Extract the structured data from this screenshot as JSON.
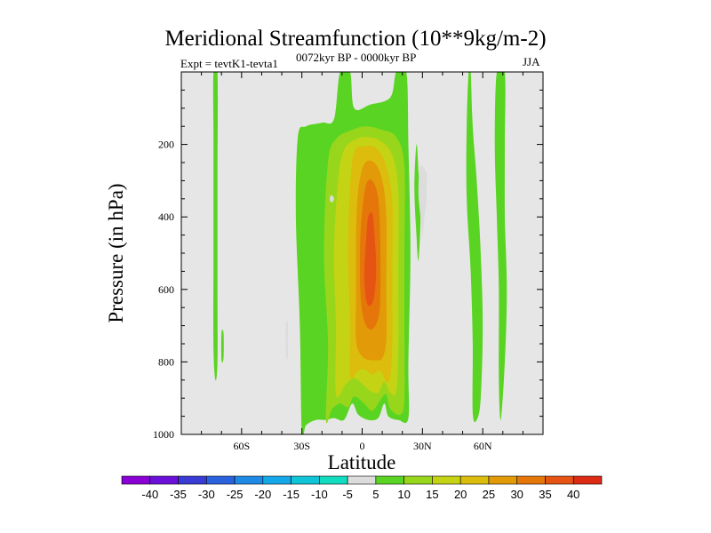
{
  "chart_data": {
    "type": "filled-contour",
    "title": "Meridional Streamfunction (10**9kg/m-2)",
    "left_label": "Expt = tevtK1-tevta1",
    "center_label": "0072kyr BP - 0000kyr BP",
    "right_label": "JJA",
    "xlabel": "Latitude",
    "ylabel": "Pressure (in hPa)",
    "xlim": [
      -90,
      90
    ],
    "ylim": [
      1000,
      0
    ],
    "xticks": [
      {
        "value": -60,
        "label": "60S"
      },
      {
        "value": -30,
        "label": "30S"
      },
      {
        "value": 0,
        "label": "0"
      },
      {
        "value": 30,
        "label": "30N"
      },
      {
        "value": 60,
        "label": "60N"
      }
    ],
    "yticks": [
      {
        "value": 200,
        "label": "200"
      },
      {
        "value": 400,
        "label": "400"
      },
      {
        "value": 600,
        "label": "600"
      },
      {
        "value": 800,
        "label": "800"
      },
      {
        "value": 1000,
        "label": "1000"
      }
    ],
    "colorbar": {
      "levels": [
        "-40",
        "-35",
        "-30",
        "-25",
        "-20",
        "-15",
        "-10",
        "-5",
        "5",
        "10",
        "15",
        "20",
        "25",
        "30",
        "35",
        "40"
      ],
      "colors": [
        "#8a00d4",
        "#6a10d8",
        "#3a3ad4",
        "#2a62de",
        "#1e8ae6",
        "#14a8e8",
        "#10c4d8",
        "#12dcc0",
        "#dcdcdc",
        "#5ad422",
        "#98d61c",
        "#c4d414",
        "#dcbc0c",
        "#e29a08",
        "#e4760a",
        "#e65414",
        "#dc2a14"
      ]
    },
    "note": "Values not filled in (between -5 and 5) are shown as gray.",
    "regions": [
      {
        "level": 5,
        "points": [
          [
            -30,
            1000
          ],
          [
            -31,
            700
          ],
          [
            -33,
            400
          ],
          [
            -32,
            180
          ],
          [
            -28,
            150
          ],
          [
            -20,
            140
          ],
          [
            -14,
            130
          ],
          [
            -11,
            0
          ],
          [
            -6,
            0
          ],
          [
            -4,
            100
          ],
          [
            4,
            90
          ],
          [
            14,
            70
          ],
          [
            17,
            0
          ],
          [
            22,
            0
          ],
          [
            23,
            200
          ],
          [
            24,
            500
          ],
          [
            23,
            800
          ],
          [
            23,
            955
          ],
          [
            18,
            960
          ],
          [
            13,
            950
          ],
          [
            11,
            915
          ],
          [
            8,
            955
          ],
          [
            3,
            960
          ],
          [
            -2,
            945
          ],
          [
            -5,
            915
          ],
          [
            -9,
            960
          ],
          [
            -14,
            955
          ],
          [
            -18,
            960
          ],
          [
            -23,
            960
          ],
          [
            -28,
            975
          ]
        ]
      },
      {
        "level": 10,
        "points": [
          [
            -18,
            960
          ],
          [
            -17,
            750
          ],
          [
            -19,
            500
          ],
          [
            -17,
            250
          ],
          [
            -13,
            185
          ],
          [
            -5,
            160
          ],
          [
            2,
            150
          ],
          [
            10,
            160
          ],
          [
            17,
            180
          ],
          [
            21,
            260
          ],
          [
            21,
            500
          ],
          [
            21,
            700
          ],
          [
            21,
            900
          ],
          [
            19,
            945
          ],
          [
            14,
            930
          ],
          [
            12,
            890
          ],
          [
            9,
            905
          ],
          [
            5,
            935
          ],
          [
            1,
            915
          ],
          [
            -4,
            895
          ],
          [
            -7,
            925
          ],
          [
            -11,
            915
          ],
          [
            -15,
            930
          ]
        ]
      },
      {
        "level": 15,
        "points": [
          [
            -13,
            890
          ],
          [
            -13,
            700
          ],
          [
            -14,
            500
          ],
          [
            -12,
            300
          ],
          [
            -9,
            215
          ],
          [
            -3,
            185
          ],
          [
            3,
            180
          ],
          [
            9,
            190
          ],
          [
            15,
            230
          ],
          [
            18,
            330
          ],
          [
            18,
            550
          ],
          [
            18,
            750
          ],
          [
            17,
            880
          ],
          [
            14,
            885
          ],
          [
            11,
            855
          ],
          [
            8,
            885
          ],
          [
            4,
            880
          ],
          [
            0,
            860
          ],
          [
            -4,
            845
          ],
          [
            -8,
            860
          ]
        ]
      },
      {
        "level": 20,
        "points": [
          [
            -6,
            840
          ],
          [
            -6,
            700
          ],
          [
            -7,
            500
          ],
          [
            -6,
            320
          ],
          [
            -4,
            220
          ],
          [
            1,
            205
          ],
          [
            7,
            210
          ],
          [
            12,
            260
          ],
          [
            15,
            360
          ],
          [
            15,
            550
          ],
          [
            15,
            750
          ],
          [
            14,
            840
          ],
          [
            12,
            855
          ],
          [
            9,
            825
          ],
          [
            5,
            835
          ],
          [
            1,
            820
          ],
          [
            -2,
            825
          ]
        ]
      },
      {
        "level": 25,
        "points": [
          [
            -3,
            740
          ],
          [
            -3,
            600
          ],
          [
            -3,
            450
          ],
          [
            -2,
            330
          ],
          [
            1,
            255
          ],
          [
            6,
            250
          ],
          [
            10,
            300
          ],
          [
            12,
            400
          ],
          [
            12,
            600
          ],
          [
            12,
            740
          ],
          [
            10,
            790
          ],
          [
            7,
            795
          ],
          [
            4,
            795
          ],
          [
            0,
            785
          ]
        ]
      },
      {
        "level": 30,
        "points": [
          [
            -1,
            590
          ],
          [
            -1,
            470
          ],
          [
            0,
            385
          ],
          [
            2,
            310
          ],
          [
            5,
            300
          ],
          [
            8,
            350
          ],
          [
            9,
            480
          ],
          [
            9,
            620
          ],
          [
            8,
            680
          ],
          [
            5,
            710
          ],
          [
            2,
            700
          ],
          [
            0,
            660
          ]
        ]
      },
      {
        "level": 35,
        "points": [
          [
            1,
            560
          ],
          [
            2,
            460
          ],
          [
            3,
            400
          ],
          [
            5,
            390
          ],
          [
            6,
            440
          ],
          [
            7,
            540
          ],
          [
            6,
            620
          ],
          [
            4,
            645
          ],
          [
            2,
            630
          ]
        ]
      },
      {
        "level": 5,
        "points": [
          [
            -74,
            0
          ],
          [
            -72,
            0
          ],
          [
            -72,
            300
          ],
          [
            -72,
            600
          ],
          [
            -72,
            800
          ],
          [
            -73,
            850
          ],
          [
            -74,
            760
          ],
          [
            -74,
            500
          ],
          [
            -74,
            200
          ]
        ]
      },
      {
        "level": 5,
        "points": [
          [
            -70,
            720
          ],
          [
            -69,
            720
          ],
          [
            -69,
            790
          ],
          [
            -70,
            795
          ]
        ]
      },
      {
        "level": 5,
        "points": [
          [
            27,
            200
          ],
          [
            28,
            270
          ],
          [
            29,
            400
          ],
          [
            28,
            520
          ],
          [
            27,
            450
          ],
          [
            26,
            320
          ]
        ]
      },
      {
        "level": 5,
        "points": [
          [
            53,
            0
          ],
          [
            54,
            0
          ],
          [
            55,
            150
          ],
          [
            57,
            300
          ],
          [
            59,
            500
          ],
          [
            60,
            700
          ],
          [
            59,
            900
          ],
          [
            57,
            960
          ],
          [
            55,
            940
          ],
          [
            55,
            750
          ],
          [
            54,
            550
          ],
          [
            52,
            350
          ],
          [
            52,
            150
          ]
        ]
      },
      {
        "level": 5,
        "points": [
          [
            67,
            0
          ],
          [
            71,
            0
          ],
          [
            71,
            200
          ],
          [
            71,
            400
          ],
          [
            72,
            600
          ],
          [
            71,
            800
          ],
          [
            69,
            960
          ],
          [
            68,
            850
          ],
          [
            68,
            600
          ],
          [
            67,
            400
          ],
          [
            66,
            200
          ]
        ]
      },
      {
        "level": -5,
        "points": [
          [
            29,
            260
          ],
          [
            32,
            280
          ],
          [
            32,
            330
          ],
          [
            32,
            360
          ],
          [
            31,
            400
          ],
          [
            30,
            450
          ],
          [
            29,
            400
          ],
          [
            28,
            330
          ]
        ]
      },
      {
        "level": -5,
        "points": [
          [
            -38,
            695
          ],
          [
            -37,
            690
          ],
          [
            -37,
            740
          ],
          [
            -37,
            790
          ],
          [
            -38,
            780
          ],
          [
            -38,
            740
          ]
        ]
      },
      {
        "level": -5,
        "points": [
          [
            -16,
            345
          ],
          [
            -15,
            340
          ],
          [
            -14,
            350
          ],
          [
            -15,
            360
          ],
          [
            -16,
            355
          ]
        ]
      }
    ]
  }
}
